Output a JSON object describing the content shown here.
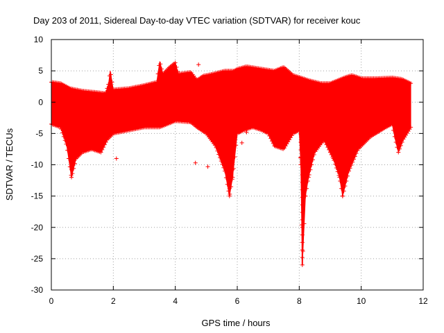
{
  "chart_data": {
    "type": "scatter",
    "title": "Day 203 of 2011, Sidereal Day-to-day VTEC variation (SDTVAR) for receiver kouc",
    "xlabel": "GPS time / hours",
    "ylabel": "SDTVAR / TECUs",
    "xlim": [
      0,
      12
    ],
    "ylim": [
      -30,
      10
    ],
    "x_ticks": [
      0,
      2,
      4,
      6,
      8,
      10,
      12
    ],
    "y_ticks": [
      -30,
      -25,
      -20,
      -15,
      -10,
      -5,
      0,
      5,
      10
    ],
    "x_tick_labels": [
      "0",
      "2",
      "4",
      "6",
      "8",
      "10",
      "12"
    ],
    "y_tick_labels": [
      "-30",
      "-25",
      "-20",
      "-15",
      "-10",
      "-5",
      "0",
      "5",
      "10"
    ],
    "grid": true,
    "marker": "plus",
    "color": "#ff0000",
    "series": [
      {
        "name": "upper envelope",
        "x": [
          0.0,
          0.3,
          0.6,
          1.0,
          1.4,
          1.75,
          1.85,
          1.9,
          2.0,
          2.5,
          3.0,
          3.4,
          3.5,
          3.6,
          3.8,
          4.0,
          4.1,
          4.5,
          4.7,
          4.9,
          5.2,
          5.6,
          5.9,
          6.0,
          6.3,
          6.8,
          7.2,
          7.5,
          7.8,
          8.0,
          8.3,
          8.7,
          9.0,
          9.5,
          9.7,
          10.0,
          10.5,
          11.0,
          11.3,
          11.6
        ],
        "y": [
          3.2,
          3.0,
          2.2,
          1.8,
          1.6,
          1.4,
          3.0,
          5.0,
          2.0,
          2.2,
          2.7,
          3.2,
          6.5,
          4.5,
          5.5,
          6.3,
          4.5,
          4.8,
          3.5,
          4.2,
          4.5,
          5.0,
          5.0,
          5.3,
          5.7,
          5.3,
          5.0,
          5.6,
          4.3,
          4.0,
          3.5,
          3.0,
          3.0,
          4.0,
          4.3,
          3.8,
          3.8,
          3.9,
          3.7,
          3.0
        ]
      },
      {
        "name": "lower envelope",
        "x": [
          0.0,
          0.3,
          0.5,
          0.65,
          0.8,
          1.0,
          1.3,
          1.6,
          1.8,
          2.0,
          2.5,
          3.0,
          3.5,
          4.0,
          4.5,
          4.7,
          5.0,
          5.3,
          5.6,
          5.75,
          5.85,
          6.0,
          6.2,
          6.5,
          6.8,
          7.0,
          7.2,
          7.5,
          7.8,
          8.0,
          8.05,
          8.1,
          8.2,
          8.3,
          8.5,
          8.8,
          9.1,
          9.3,
          9.4,
          9.6,
          9.9,
          10.3,
          10.8,
          11.0,
          11.1,
          11.2,
          11.35,
          11.6
        ],
        "y": [
          -3.5,
          -4.0,
          -7.0,
          -12.0,
          -9.0,
          -8.0,
          -7.5,
          -8.0,
          -6.0,
          -5.0,
          -4.5,
          -4.0,
          -4.0,
          -3.0,
          -3.2,
          -4.0,
          -5.0,
          -7.0,
          -11.0,
          -15.0,
          -12.0,
          -5.0,
          -4.5,
          -4.0,
          -4.5,
          -5.0,
          -7.0,
          -7.5,
          -5.0,
          -4.5,
          -10.0,
          -26.0,
          -15.0,
          -12.0,
          -8.0,
          -6.0,
          -9.0,
          -12.0,
          -15.0,
          -11.0,
          -7.5,
          -5.5,
          -4.0,
          -3.5,
          -6.0,
          -8.0,
          -6.0,
          -4.0
        ]
      }
    ],
    "outliers": [
      {
        "x": 2.1,
        "y": -9.0
      },
      {
        "x": 4.65,
        "y": -9.7
      },
      {
        "x": 5.05,
        "y": -10.3
      },
      {
        "x": 4.75,
        "y": 6.0
      },
      {
        "x": 5.9,
        "y": -6.0
      },
      {
        "x": 6.15,
        "y": -6.5
      },
      {
        "x": 6.3,
        "y": -4.8
      }
    ]
  }
}
